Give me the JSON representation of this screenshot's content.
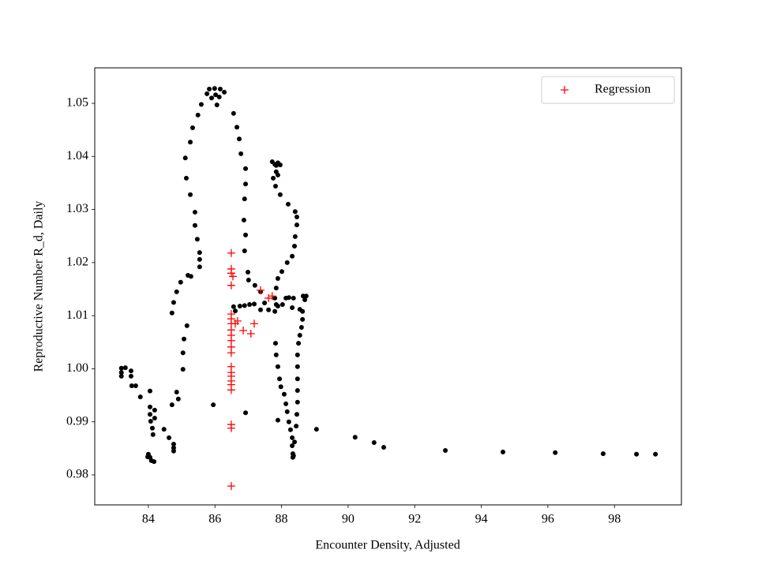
{
  "chart_data": {
    "type": "scatter",
    "xlabel": "Encounter Density, Adjusted",
    "ylabel": "Reproductive Number R_d, Daily",
    "xlim": [
      82.39,
      100.01
    ],
    "ylim": [
      0.97435,
      1.05669
    ],
    "xticks": [
      84,
      86,
      88,
      90,
      92,
      94,
      96,
      98
    ],
    "yticks": [
      0.98,
      0.99,
      {
        "value": 1,
        "label": "1.00"
      },
      1.01,
      1.02,
      1.03,
      1.04,
      1.05
    ],
    "legend": "upper right",
    "series": [
      {
        "color": "#000000",
        "marker": "o",
        "x": [
          83.19,
          83.19,
          83.19,
          83.31,
          83.48,
          83.48,
          83.5,
          83.62,
          83.76,
          84.05,
          84.05,
          84.05,
          84.07,
          84.12,
          84.14,
          84.19,
          84.19,
          84.0,
          84.05,
          84.09,
          84.17,
          83.98,
          84.47,
          84.62,
          84.76,
          84.76,
          84.76,
          84.71,
          84.85,
          84.9,
          85.04,
          85.04,
          85.07,
          85.16,
          84.71,
          84.76,
          84.85,
          84.97,
          85.19,
          85.28,
          85.54,
          85.54,
          85.54,
          85.47,
          85.4,
          85.4,
          85.26,
          85.14,
          85.11,
          85.26,
          85.33,
          85.49,
          85.59,
          85.76,
          85.83,
          85.99,
          86.16,
          86.28,
          86.02,
          85.9,
          86.13,
          86.06,
          86.56,
          86.66,
          86.73,
          86.78,
          86.92,
          86.92,
          86.89,
          86.87,
          86.92,
          86.89,
          86.99,
          87.01,
          87.2,
          87.37,
          87.49,
          87.72,
          87.8,
          87.84,
          87.89,
          87.96,
          87.84,
          87.89,
          87.75,
          87.82,
          87.96,
          88.2,
          88.41,
          88.46,
          88.46,
          88.41,
          88.39,
          88.32,
          88.17,
          88.01,
          87.89,
          87.84,
          87.8,
          87.84,
          87.8,
          86.56,
          86.75,
          86.89,
          87.04,
          87.18,
          86.61,
          87.37,
          87.61,
          87.89,
          88.03,
          88.13,
          88.22,
          88.36,
          88.32,
          88.55,
          88.65,
          88.7,
          88.74,
          88.63,
          88.63,
          88.6,
          88.55,
          88.51,
          88.48,
          88.48,
          88.48,
          88.48,
          88.48,
          88.46,
          88.44,
          88.39,
          88.36,
          87.82,
          87.84,
          87.89,
          87.94,
          87.98,
          88.08,
          88.13,
          88.17,
          88.22,
          88.27,
          88.32,
          88.32,
          88.34,
          88.34,
          87.89,
          85.95,
          86.92,
          89.05,
          90.21,
          90.78,
          91.07,
          92.92,
          94.65,
          96.22,
          97.66,
          98.66,
          99.23
        ],
        "values": [
          1.0001,
          0.9993,
          0.9986,
          1.0002,
          0.9996,
          0.9986,
          0.9968,
          0.9968,
          0.9947,
          0.9958,
          0.9928,
          0.9914,
          0.9901,
          0.9888,
          0.9876,
          0.9922,
          0.9907,
          0.9839,
          0.9833,
          0.9827,
          0.9825,
          0.9834,
          0.9886,
          0.987,
          0.9858,
          0.9851,
          0.9845,
          0.9932,
          0.9956,
          0.9943,
          0.9999,
          1.003,
          1.0056,
          1.0081,
          1.0105,
          1.0125,
          1.0145,
          1.0163,
          1.0176,
          1.0174,
          1.0192,
          1.0206,
          1.0219,
          1.0244,
          1.027,
          1.0295,
          1.0328,
          1.0359,
          1.0397,
          1.0427,
          1.0454,
          1.0478,
          1.0498,
          1.0518,
          1.0527,
          1.0528,
          1.0527,
          1.0521,
          1.0516,
          1.051,
          1.0512,
          1.0497,
          1.0481,
          1.0455,
          1.0433,
          1.0405,
          1.0377,
          1.0348,
          1.032,
          1.028,
          1.0252,
          1.0222,
          1.0182,
          1.0167,
          1.0157,
          1.0145,
          1.0124,
          1.039,
          1.0385,
          1.0383,
          1.0388,
          1.0384,
          1.0371,
          1.0365,
          1.0359,
          1.0344,
          1.0328,
          1.031,
          1.0296,
          1.0286,
          1.0271,
          1.0249,
          1.0231,
          1.0212,
          1.02,
          1.0183,
          1.017,
          1.0152,
          1.0133,
          1.0121,
          1.0108,
          1.0117,
          1.0118,
          1.0119,
          1.0121,
          1.0122,
          1.0109,
          1.0111,
          1.0111,
          1.0118,
          1.0121,
          1.0133,
          1.0134,
          1.0133,
          1.0115,
          1.0112,
          1.0137,
          1.013,
          1.0137,
          1.0108,
          1.0093,
          1.0078,
          1.0063,
          1.0048,
          1.0026,
          1.0004,
          0.9981,
          0.9959,
          0.9937,
          0.9914,
          0.9892,
          0.9862,
          0.9836,
          1.0048,
          1.0026,
          1.0004,
          0.9981,
          0.9966,
          0.9952,
          0.9934,
          0.9919,
          0.99,
          0.9885,
          0.987,
          0.9855,
          0.984,
          0.9833,
          0.9903,
          0.9932,
          0.9917,
          0.9886,
          0.9871,
          0.9861,
          0.9852,
          0.9846,
          0.9843,
          0.9842,
          0.984,
          0.9839,
          0.9839
        ]
      },
      {
        "name": "Regression",
        "color": "#ff0000",
        "marker": "+",
        "x": [
          86.49,
          86.49,
          86.49,
          86.54,
          86.49,
          86.49,
          86.49,
          86.49,
          86.49,
          86.49,
          86.49,
          86.49,
          86.49,
          86.49,
          86.49,
          86.49,
          86.49,
          86.49,
          86.49,
          86.49,
          86.49,
          86.49,
          86.61,
          86.68,
          86.85,
          87.08,
          87.18,
          87.37,
          87.61,
          87.72
        ],
        "values": [
          1.0218,
          1.0188,
          1.018,
          1.0174,
          1.0157,
          1.0103,
          1.0094,
          1.0085,
          1.0073,
          1.0063,
          1.0053,
          1.0041,
          1.003,
          1.0004,
          0.9993,
          0.9986,
          0.9977,
          0.997,
          0.996,
          0.9895,
          0.9888,
          0.9779,
          1.0085,
          1.009,
          1.0072,
          1.0066,
          1.0085,
          1.0148,
          1.0133,
          1.0137
        ]
      }
    ]
  }
}
